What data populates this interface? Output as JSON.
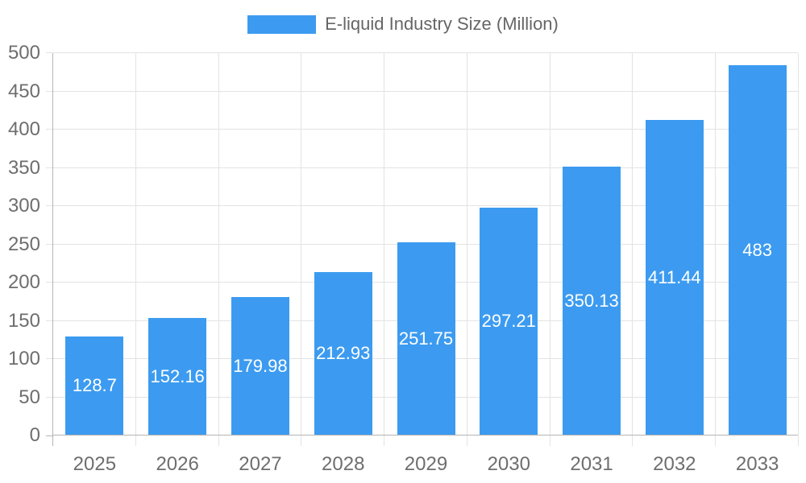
{
  "legend": {
    "label": "E-liquid Industry Size (Million)"
  },
  "colors": {
    "bar": "#3C9BF0",
    "axis_line": "#B4B4B4",
    "gridline": "#E3E3E3",
    "axis_text": "#6E6E6E",
    "legend_text": "#666666",
    "bar_label_text": "#FFFFFF",
    "background": "#FFFFFF"
  },
  "chart_data": {
    "type": "bar",
    "title": "E-liquid Industry Size (Million)",
    "series_name": "E-liquid Industry Size (Million)",
    "categories": [
      "2025",
      "2026",
      "2027",
      "2028",
      "2029",
      "2030",
      "2031",
      "2032",
      "2033"
    ],
    "values": [
      128.7,
      152.16,
      179.98,
      212.93,
      251.75,
      297.21,
      350.13,
      411.44,
      483
    ],
    "value_labels": [
      "128.7",
      "152.16",
      "179.98",
      "212.93",
      "251.75",
      "297.21",
      "350.13",
      "411.44",
      "483"
    ],
    "xlabel": "",
    "ylabel": "",
    "ylim": [
      0,
      500
    ],
    "ytick_step": 50,
    "ytick_labels": [
      "0",
      "50",
      "100",
      "150",
      "200",
      "250",
      "300",
      "350",
      "400",
      "450",
      "500"
    ],
    "grid": "both",
    "legend_position": "top-center",
    "bar_label_position": "inside-center"
  }
}
